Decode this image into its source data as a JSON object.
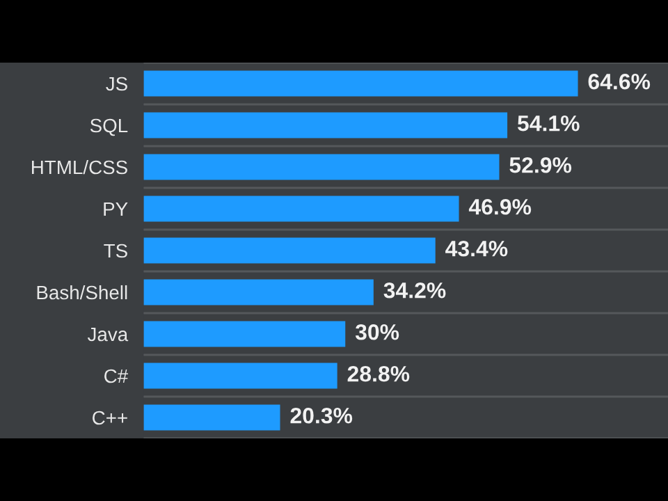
{
  "chart_data": {
    "type": "bar",
    "orientation": "horizontal",
    "categories": [
      "JS",
      "SQL",
      "HTML/CSS",
      "PY",
      "TS",
      "Bash/Shell",
      "Java",
      "C#",
      "C++"
    ],
    "values": [
      64.6,
      54.1,
      52.9,
      46.9,
      43.4,
      34.2,
      30,
      28.8,
      20.3
    ],
    "value_labels": [
      "64.6%",
      "54.1%",
      "52.9%",
      "46.9%",
      "43.4%",
      "34.2%",
      "30%",
      "28.8%",
      "20.3%"
    ],
    "color": "#1e9bff",
    "xlim": [
      0,
      78
    ],
    "grid": "y",
    "tick_labels": "y"
  }
}
